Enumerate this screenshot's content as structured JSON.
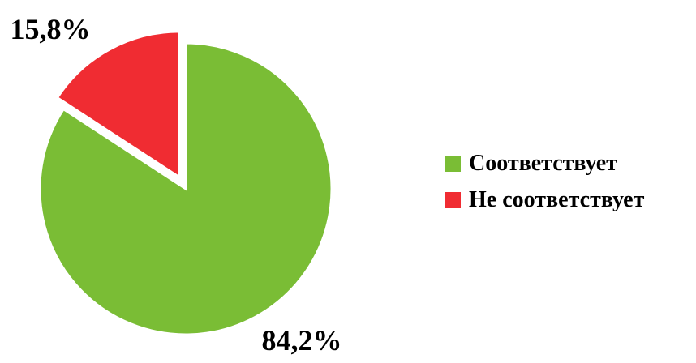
{
  "chart_data": {
    "type": "pie",
    "slices": [
      {
        "label": "Соответствует",
        "value": 84.2,
        "display": "84,2%",
        "color": "#7ABD35"
      },
      {
        "label": "Не соответствует",
        "value": 15.8,
        "display": "15,8%",
        "color": "#F02C32",
        "exploded": true
      }
    ],
    "legend_position": "right",
    "title": ""
  }
}
